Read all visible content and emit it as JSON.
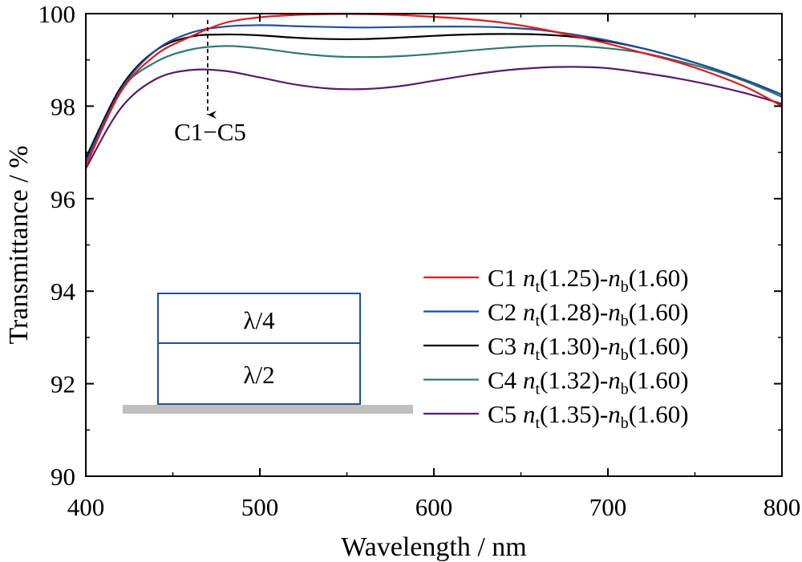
{
  "chart_data": {
    "type": "line",
    "xlabel": "Wavelength / nm",
    "ylabel": "Transmittance / %",
    "xlim": [
      400,
      800
    ],
    "ylim": [
      90,
      100
    ],
    "xticks": [
      "400",
      "500",
      "600",
      "700",
      "800"
    ],
    "yticks": [
      "90",
      "92",
      "94",
      "96",
      "98",
      "100"
    ],
    "grid": false,
    "legend_position": "bottom-right",
    "series": [
      {
        "name": "C1",
        "legend_parts": {
          "label": "C1 ",
          "nt": "n",
          "nt_sub": "t",
          "nt_val": "(1.25)-",
          "nb": "n",
          "nb_sub": "b",
          "nb_val": "(1.60)"
        },
        "color": "#e31a1c",
        "x": [
          400,
          420,
          440,
          460,
          480,
          500,
          520,
          540,
          560,
          580,
          600,
          620,
          640,
          660,
          680,
          700,
          720,
          740,
          760,
          780,
          800
        ],
        "y": [
          96.7,
          98.3,
          99.1,
          99.5,
          99.8,
          99.92,
          99.97,
          99.99,
          99.99,
          99.97,
          99.93,
          99.88,
          99.8,
          99.68,
          99.52,
          99.35,
          99.15,
          98.95,
          98.7,
          98.4,
          98.0
        ]
      },
      {
        "name": "C2",
        "legend_parts": {
          "label": "C2 ",
          "nt": "n",
          "nt_sub": "t",
          "nt_val": "(1.28)-",
          "nb": "n",
          "nb_sub": "b",
          "nb_val": "(1.60)"
        },
        "color": "#1f4e9e",
        "x": [
          400,
          420,
          440,
          460,
          480,
          500,
          520,
          540,
          560,
          580,
          600,
          620,
          640,
          660,
          680,
          700,
          720,
          740,
          760,
          780,
          800
        ],
        "y": [
          96.8,
          98.35,
          99.2,
          99.58,
          99.72,
          99.75,
          99.73,
          99.71,
          99.7,
          99.71,
          99.72,
          99.72,
          99.7,
          99.65,
          99.55,
          99.42,
          99.25,
          99.05,
          98.82,
          98.55,
          98.25
        ]
      },
      {
        "name": "C3",
        "legend_parts": {
          "label": "C3 ",
          "nt": "n",
          "nt_sub": "t",
          "nt_val": "(1.30)-",
          "nb": "n",
          "nb_sub": "b",
          "nb_val": "(1.60)"
        },
        "color": "#000000",
        "x": [
          400,
          420,
          440,
          460,
          480,
          500,
          520,
          540,
          560,
          580,
          600,
          620,
          640,
          660,
          680,
          700,
          720,
          740,
          760,
          780,
          800
        ],
        "y": [
          96.85,
          98.4,
          99.2,
          99.5,
          99.55,
          99.53,
          99.48,
          99.45,
          99.45,
          99.48,
          99.52,
          99.55,
          99.56,
          99.55,
          99.5,
          99.4,
          99.25,
          99.05,
          98.82,
          98.55,
          98.25
        ]
      },
      {
        "name": "C4",
        "legend_parts": {
          "label": "C4 ",
          "nt": "n",
          "nt_sub": "t",
          "nt_val": "(1.32)-",
          "nb": "n",
          "nb_sub": "b",
          "nb_val": "(1.60)"
        },
        "color": "#2e7a73",
        "x": [
          400,
          420,
          440,
          460,
          480,
          500,
          520,
          540,
          560,
          580,
          600,
          620,
          640,
          660,
          680,
          700,
          720,
          740,
          760,
          780,
          800
        ],
        "y": [
          96.9,
          98.35,
          98.95,
          99.22,
          99.3,
          99.25,
          99.15,
          99.08,
          99.06,
          99.08,
          99.13,
          99.2,
          99.26,
          99.3,
          99.3,
          99.25,
          99.15,
          98.98,
          98.78,
          98.52,
          98.2
        ]
      },
      {
        "name": "C5",
        "legend_parts": {
          "label": "C5 ",
          "nt": "n",
          "nt_sub": "t",
          "nt_val": "(1.35)-",
          "nb": "n",
          "nb_sub": "b",
          "nb_val": "(1.60)"
        },
        "color": "#5b1a6e",
        "x": [
          400,
          420,
          440,
          460,
          480,
          500,
          520,
          540,
          560,
          580,
          600,
          620,
          640,
          660,
          680,
          700,
          720,
          740,
          760,
          780,
          800
        ],
        "y": [
          96.65,
          97.95,
          98.58,
          98.78,
          98.76,
          98.62,
          98.47,
          98.38,
          98.37,
          98.43,
          98.55,
          98.67,
          98.77,
          98.83,
          98.85,
          98.82,
          98.72,
          98.6,
          98.45,
          98.27,
          98.05
        ]
      }
    ],
    "annotation": {
      "text": "C1−C5",
      "arrow_x": 470,
      "arrow_from_y": 100,
      "arrow_to_y": 97.9
    }
  },
  "inset": {
    "top_layer_label": "λ/4",
    "bottom_layer_label": "λ/2",
    "layer_border_color": "#1f4e9e",
    "substrate_color": "#bfbfbf"
  }
}
